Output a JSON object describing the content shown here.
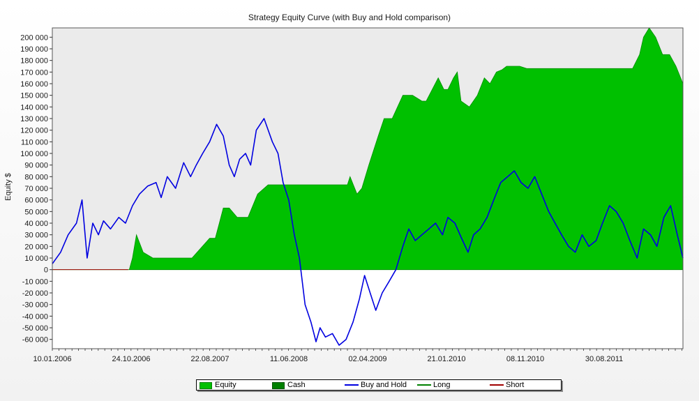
{
  "chart_data": {
    "type": "area",
    "title": "Strategy Equity Curve (with Buy and Hold comparison)",
    "xlabel": "",
    "ylabel": "Equity $",
    "x_tick_labels": [
      "10.01.2006",
      "24.10.2006",
      "22.08.2007",
      "11.06.2008",
      "02.04.2009",
      "21.01.2010",
      "08.11.2010",
      "30.08.2011"
    ],
    "y_ticks": [
      200000,
      190000,
      180000,
      170000,
      160000,
      150000,
      140000,
      130000,
      120000,
      110000,
      100000,
      90000,
      80000,
      70000,
      60000,
      50000,
      40000,
      30000,
      20000,
      10000,
      0,
      -10000,
      -20000,
      -30000,
      -40000,
      -50000,
      -60000
    ],
    "y_tick_labels": [
      "200 000",
      "190 000",
      "180 000",
      "170 000",
      "160 000",
      "150 000",
      "140 000",
      "130 000",
      "120 000",
      "110 000",
      "100 000",
      "90 000",
      "80 000",
      "70 000",
      "60 000",
      "50 000",
      "40 000",
      "30 000",
      "20 000",
      "10 000",
      "0",
      "-10 000",
      "-20 000",
      "-30 000",
      "-40 000",
      "-50 000",
      "-60 000"
    ],
    "ylim": [
      -68000,
      208000
    ],
    "xlim": [
      "2006-01-10",
      "2012-06-20"
    ],
    "grid": false,
    "legend_position": "bottom",
    "series": [
      {
        "name": "Equity",
        "kind": "area",
        "color": "#00c000",
        "x": [
          "2006-01-10",
          "2006-10-24",
          "2006-11-05",
          "2006-11-20",
          "2006-12-15",
          "2007-01-20",
          "2007-02-20",
          "2007-04-15",
          "2007-06-15",
          "2007-08-20",
          "2007-09-10",
          "2007-09-25",
          "2007-10-10",
          "2007-11-01",
          "2007-12-01",
          "2007-12-20",
          "2008-01-10",
          "2008-02-15",
          "2008-03-25",
          "2008-05-20",
          "2008-06-10",
          "2008-07-01",
          "2008-08-15",
          "2008-09-15",
          "2008-11-01",
          "2009-01-15",
          "2009-01-25",
          "2009-02-20",
          "2009-03-10",
          "2009-04-05",
          "2009-05-10",
          "2009-06-01",
          "2009-07-01",
          "2009-08-10",
          "2009-09-15",
          "2009-10-20",
          "2009-11-05",
          "2009-12-20",
          "2010-01-10",
          "2010-01-25",
          "2010-02-15",
          "2010-03-01",
          "2010-03-15",
          "2010-04-15",
          "2010-05-15",
          "2010-06-10",
          "2010-07-01",
          "2010-07-25",
          "2010-08-15",
          "2010-09-01",
          "2010-10-01",
          "2010-10-20",
          "2010-11-15",
          "2010-12-15",
          "2011-01-20",
          "2011-03-01",
          "2011-04-15",
          "2011-05-20",
          "2011-06-20",
          "2011-08-01",
          "2011-09-15",
          "2011-10-15",
          "2011-11-15",
          "2011-12-15",
          "2012-01-10",
          "2012-01-25",
          "2012-02-15",
          "2012-03-10",
          "2012-04-05",
          "2012-05-01",
          "2012-05-25",
          "2012-06-20"
        ],
        "values": [
          0,
          0,
          10000,
          30000,
          15000,
          10000,
          10000,
          10000,
          10000,
          27000,
          27000,
          40000,
          53000,
          53000,
          45000,
          45000,
          45000,
          65000,
          73000,
          73000,
          73000,
          73000,
          73000,
          73000,
          73000,
          73000,
          80000,
          65000,
          70000,
          90000,
          115000,
          130000,
          130000,
          150000,
          150000,
          145000,
          145000,
          165000,
          155000,
          155000,
          165000,
          170000,
          145000,
          140000,
          150000,
          165000,
          160000,
          170000,
          172000,
          175000,
          175000,
          175000,
          173000,
          173000,
          173000,
          173000,
          173000,
          173000,
          173000,
          173000,
          173000,
          173000,
          173000,
          173000,
          185000,
          200000,
          208000,
          200000,
          185000,
          185000,
          175000,
          160000
        ]
      },
      {
        "name": "Cash",
        "kind": "area",
        "color": "#008000",
        "values": []
      },
      {
        "name": "Buy and Hold",
        "kind": "line",
        "color": "#0000e0",
        "x": [
          "2006-01-10",
          "2006-02-10",
          "2006-03-10",
          "2006-04-10",
          "2006-05-01",
          "2006-05-20",
          "2006-06-10",
          "2006-07-01",
          "2006-07-20",
          "2006-08-15",
          "2006-09-15",
          "2006-10-10",
          "2006-11-05",
          "2006-12-01",
          "2007-01-01",
          "2007-02-01",
          "2007-02-20",
          "2007-03-15",
          "2007-04-15",
          "2007-05-15",
          "2007-06-10",
          "2007-07-01",
          "2007-07-25",
          "2007-08-20",
          "2007-09-15",
          "2007-10-10",
          "2007-11-01",
          "2007-11-20",
          "2007-12-10",
          "2008-01-01",
          "2008-01-20",
          "2008-02-10",
          "2008-03-10",
          "2008-04-10",
          "2008-05-01",
          "2008-05-20",
          "2008-06-10",
          "2008-07-01",
          "2008-07-20",
          "2008-08-10",
          "2008-09-01",
          "2008-09-20",
          "2008-10-05",
          "2008-10-25",
          "2008-11-20",
          "2008-12-15",
          "2009-01-10",
          "2009-02-05",
          "2009-03-01",
          "2009-03-20",
          "2009-04-10",
          "2009-05-01",
          "2009-05-25",
          "2009-06-20",
          "2009-07-15",
          "2009-08-10",
          "2009-09-01",
          "2009-09-25",
          "2009-10-20",
          "2009-11-15",
          "2009-12-10",
          "2010-01-05",
          "2010-01-25",
          "2010-02-20",
          "2010-03-15",
          "2010-04-10",
          "2010-05-01",
          "2010-05-25",
          "2010-06-20",
          "2010-07-15",
          "2010-08-10",
          "2010-09-05",
          "2010-09-30",
          "2010-10-25",
          "2010-11-20",
          "2010-12-15",
          "2011-01-10",
          "2011-02-05",
          "2011-03-01",
          "2011-03-25",
          "2011-04-20",
          "2011-05-15",
          "2011-06-10",
          "2011-07-05",
          "2011-08-01",
          "2011-08-25",
          "2011-09-20",
          "2011-10-15",
          "2011-11-10",
          "2011-12-05",
          "2012-01-01",
          "2012-01-25",
          "2012-02-20",
          "2012-03-15",
          "2012-04-10",
          "2012-05-05",
          "2012-05-30",
          "2012-06-20"
        ],
        "values": [
          5000,
          15000,
          30000,
          40000,
          60000,
          10000,
          40000,
          30000,
          42000,
          35000,
          45000,
          40000,
          55000,
          65000,
          72000,
          75000,
          62000,
          80000,
          70000,
          92000,
          80000,
          90000,
          100000,
          110000,
          125000,
          115000,
          90000,
          80000,
          95000,
          100000,
          90000,
          120000,
          130000,
          110000,
          100000,
          75000,
          60000,
          30000,
          10000,
          -30000,
          -45000,
          -62000,
          -50000,
          -58000,
          -55000,
          -65000,
          -60000,
          -45000,
          -25000,
          -5000,
          -20000,
          -35000,
          -20000,
          -10000,
          0,
          20000,
          35000,
          25000,
          30000,
          35000,
          40000,
          30000,
          45000,
          40000,
          28000,
          15000,
          30000,
          35000,
          45000,
          60000,
          75000,
          80000,
          85000,
          75000,
          70000,
          80000,
          65000,
          50000,
          40000,
          30000,
          20000,
          15000,
          30000,
          20000,
          25000,
          40000,
          55000,
          50000,
          40000,
          25000,
          10000,
          35000,
          30000,
          20000,
          45000,
          55000,
          30000,
          10000
        ]
      },
      {
        "name": "Long",
        "kind": "line",
        "color": "#008000",
        "values": []
      },
      {
        "name": "Short",
        "kind": "line",
        "color": "#a00000",
        "x": [
          "2006-01-10",
          "2006-10-20"
        ],
        "values": [
          0,
          0
        ]
      }
    ]
  },
  "legend": {
    "items": [
      {
        "label": "Equity",
        "color": "#00c000",
        "shape": "box"
      },
      {
        "label": "Cash",
        "color": "#008000",
        "shape": "box"
      },
      {
        "label": "Buy and Hold",
        "color": "#0000e0",
        "shape": "line"
      },
      {
        "label": "Long",
        "color": "#008000",
        "shape": "line"
      },
      {
        "label": "Short",
        "color": "#a00000",
        "shape": "line"
      }
    ]
  }
}
